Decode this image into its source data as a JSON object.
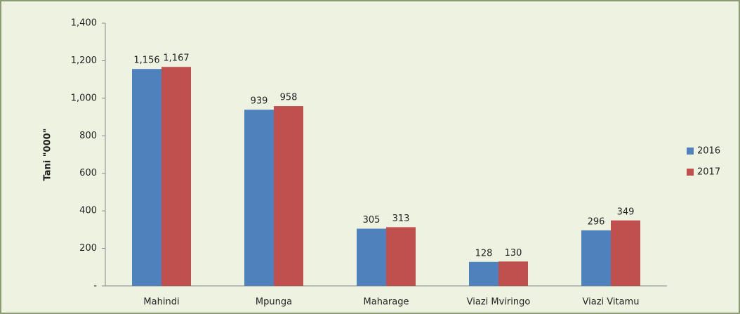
{
  "chart_data": {
    "type": "bar",
    "y_label": "Tani \"000\"",
    "categories": [
      "Mahindi",
      "Mpunga",
      "Maharage",
      "Viazi Mviringo",
      "Viazi Vitamu"
    ],
    "series": [
      {
        "name": "2016",
        "color": "#4f81bd",
        "values": [
          1156,
          939,
          305,
          128,
          296
        ],
        "value_labels": [
          "1,156",
          "939",
          "305",
          "128",
          "296"
        ]
      },
      {
        "name": "2017",
        "color": "#c0504d",
        "values": [
          1167,
          958,
          313,
          130,
          349
        ],
        "value_labels": [
          "1,167",
          "958",
          "313",
          "130",
          "349"
        ]
      }
    ],
    "ylim": [
      0,
      1400
    ],
    "yticks": [
      {
        "value": 0,
        "label": "-"
      },
      200,
      400,
      600,
      800,
      {
        "value": 1000,
        "label": "1,000"
      },
      {
        "value": 1200,
        "label": "1,200"
      },
      {
        "value": 1400,
        "label": "1,400"
      }
    ],
    "legend": "right"
  }
}
